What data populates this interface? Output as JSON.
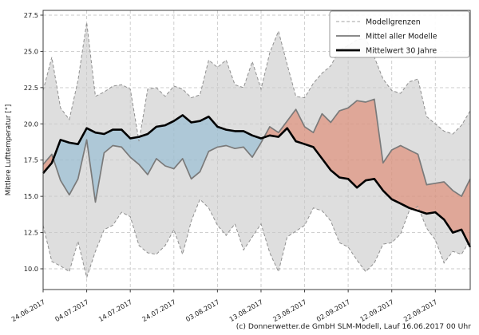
{
  "footer": "(c) Donnerwetter.de GmbH SLM-Modell, Lauf 16.06.2017 00 Uhr",
  "chart_data": {
    "type": "line",
    "title": "",
    "xlabel": "",
    "ylabel": "Mittlere Lufttemperatur [°]",
    "grid": true,
    "ylim": [
      8.6,
      27.9
    ],
    "yticks": [
      27.5,
      25.0,
      22.5,
      20.0,
      17.5,
      15.0,
      12.5,
      10.0
    ],
    "xtick_days": [
      0,
      10,
      20,
      30,
      40,
      50,
      60,
      70,
      80,
      90
    ],
    "xtick_labels": [
      "24.06.2017",
      "04.07.2017",
      "14.07.2017",
      "24.07.2017",
      "03.08.2017",
      "13.08.2017",
      "23.08.2017",
      "02.09.2017",
      "12.09.2017",
      "22.09.2017"
    ],
    "x_days": [
      0,
      2,
      4,
      6,
      8,
      10,
      12,
      14,
      16,
      18,
      20,
      22,
      24,
      26,
      28,
      30,
      32,
      34,
      36,
      38,
      40,
      42,
      44,
      46,
      48,
      50,
      52,
      54,
      56,
      58,
      60,
      62,
      64,
      66,
      68,
      70,
      72,
      74,
      76,
      78,
      80,
      82,
      84,
      86,
      88,
      90,
      92,
      94,
      96,
      98
    ],
    "series": [
      {
        "name": "Modellgrenzen oben",
        "role": "band_upper",
        "style": "dashed",
        "color": "#909090",
        "values": [
          22.3,
          24.6,
          21.1,
          20.3,
          23.0,
          27.0,
          21.9,
          22.2,
          22.6,
          22.7,
          22.4,
          18.8,
          22.4,
          22.5,
          21.9,
          22.6,
          22.4,
          21.8,
          22.0,
          24.4,
          23.9,
          24.4,
          22.7,
          22.5,
          24.3,
          22.4,
          24.9,
          26.4,
          24.1,
          21.9,
          21.8,
          22.8,
          23.5,
          24.0,
          25.1,
          25.4,
          25.8,
          25.9,
          24.6,
          23.1,
          22.3,
          22.1,
          22.9,
          23.1,
          20.5,
          20.0,
          19.5,
          19.3,
          19.9,
          20.9
        ]
      },
      {
        "name": "Modellgrenzen unten",
        "role": "band_lower",
        "style": "dashed",
        "color": "#909090",
        "values": [
          13.0,
          10.5,
          10.2,
          9.8,
          11.9,
          9.4,
          11.2,
          12.7,
          13.0,
          13.9,
          13.6,
          11.6,
          11.1,
          11.0,
          11.6,
          12.7,
          11.0,
          13.3,
          14.8,
          14.2,
          13.0,
          12.3,
          13.1,
          11.3,
          12.2,
          13.1,
          11.1,
          9.8,
          12.2,
          12.6,
          13.0,
          14.2,
          14.0,
          13.3,
          11.8,
          11.5,
          10.6,
          9.8,
          10.4,
          11.7,
          11.8,
          12.4,
          14.0,
          14.3,
          12.8,
          12.0,
          10.4,
          11.2,
          11.0,
          12.0
        ]
      },
      {
        "name": "Mittel aller Modelle",
        "role": "model_mean",
        "style": "solid",
        "color": "#7a7a7a",
        "values": [
          17.2,
          17.9,
          16.1,
          15.1,
          16.2,
          18.9,
          14.6,
          18.0,
          18.5,
          18.4,
          17.7,
          17.2,
          16.5,
          17.6,
          17.1,
          16.9,
          17.6,
          16.2,
          16.7,
          18.1,
          18.4,
          18.5,
          18.3,
          18.4,
          17.7,
          18.7,
          19.8,
          19.4,
          20.2,
          21.0,
          19.8,
          19.4,
          20.7,
          20.1,
          20.9,
          21.1,
          21.6,
          21.5,
          21.7,
          17.3,
          18.2,
          18.5,
          18.2,
          17.9,
          15.8,
          15.9,
          16.0,
          15.4,
          15.0,
          16.2
        ]
      },
      {
        "name": "Mittelwert 30 Jahre",
        "role": "climate_mean",
        "style": "solid",
        "color": "#000000",
        "values": [
          16.6,
          17.3,
          18.9,
          18.7,
          18.6,
          19.7,
          19.4,
          19.3,
          19.6,
          19.6,
          19.0,
          19.1,
          19.3,
          19.8,
          19.9,
          20.2,
          20.6,
          20.1,
          20.2,
          20.5,
          19.8,
          19.6,
          19.5,
          19.5,
          19.2,
          19.0,
          19.2,
          19.1,
          19.7,
          18.8,
          18.6,
          18.4,
          17.6,
          16.8,
          16.3,
          16.2,
          15.6,
          16.1,
          16.2,
          15.4,
          14.8,
          14.5,
          14.2,
          14.0,
          13.8,
          13.9,
          13.4,
          12.5,
          12.7,
          11.5
        ]
      }
    ],
    "fills": {
      "band_color": "#c8c8c8",
      "band_opacity": 0.6,
      "model_below_climate_color": "#86b6d2",
      "model_above_climate_color": "#e07a5f",
      "fill_opacity": 0.55
    },
    "legend": {
      "position": "top-right",
      "entries": [
        "Modellgrenzen",
        "Mittel aller Modelle",
        "Mittelwert 30 Jahre"
      ]
    },
    "colors": {
      "grid": "#c9c9c9",
      "frame": "#3c3c3c",
      "band_edge": "#909090",
      "model_mean_line": "#7a7a7a",
      "climate_mean_line": "#000000"
    }
  }
}
